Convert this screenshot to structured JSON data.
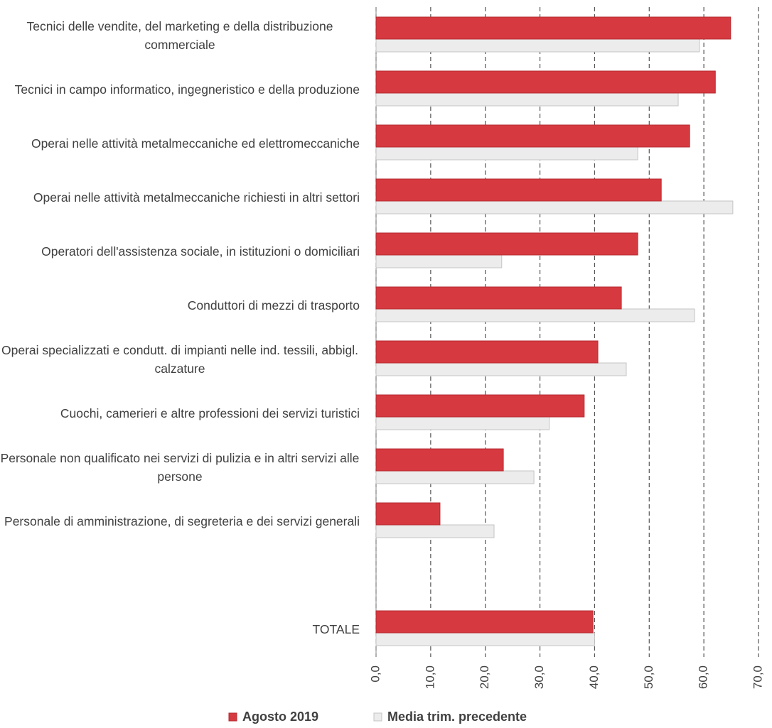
{
  "chart_data": {
    "type": "hbar",
    "categories": [
      "Tecnici delle vendite, del marketing e della distribuzione commerciale",
      "Tecnici in campo informatico, ingegneristico e della produzione",
      "Operai nelle attività metalmeccaniche ed elettromeccaniche",
      "Operai nelle attività metalmeccaniche richiesti in altri settori",
      "Operatori dell'assistenza sociale, in istituzioni o domiciliari",
      "Conduttori di mezzi di trasporto",
      "Operai specializzati e condutt. di impianti nelle ind. tessili, abbigl. calzature",
      "Cuochi, camerieri e altre professioni dei servizi turistici",
      "Personale non qualificato nei servizi di pulizia e in altri servizi alle persone",
      "Personale di amministrazione, di segreteria e dei servizi generali",
      null,
      "TOTALE"
    ],
    "series": [
      {
        "name": "Agosto 2019",
        "color": "#d63a40",
        "values": [
          64.9,
          62.1,
          57.4,
          52.2,
          47.9,
          44.9,
          40.6,
          38.1,
          23.3,
          11.7,
          null,
          39.7
        ]
      },
      {
        "name": "Media trim. precedente",
        "color": "#ececec",
        "values": [
          59.2,
          55.3,
          47.9,
          65.3,
          23.0,
          58.3,
          45.8,
          31.7,
          28.9,
          21.6,
          null,
          40.0
        ]
      }
    ],
    "xlim": [
      0,
      70
    ],
    "xticks": [
      {
        "value": 0,
        "label": "0,0"
      },
      {
        "value": 10,
        "label": "10,0"
      },
      {
        "value": 20,
        "label": "20,0"
      },
      {
        "value": 30,
        "label": "30,0"
      },
      {
        "value": 40,
        "label": "40,0"
      },
      {
        "value": 50,
        "label": "50,0"
      },
      {
        "value": 60,
        "label": "60,0"
      },
      {
        "value": 70,
        "label": "70,0"
      }
    ],
    "grid": true,
    "legend": "bottom"
  }
}
